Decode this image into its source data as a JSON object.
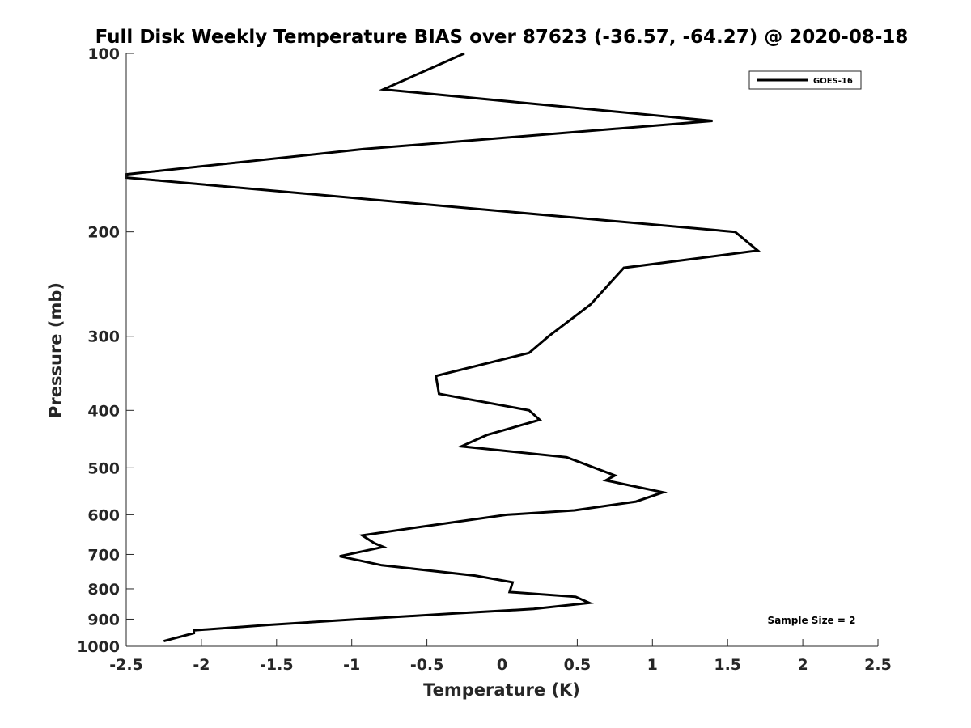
{
  "chart_data": {
    "type": "line",
    "title": "Full Disk Weekly Temperature BIAS over 87623 (-36.57, -64.27) @ 2020-08-18",
    "xlabel": "Temperature (K)",
    "ylabel": "Pressure (mb)",
    "xlim": [
      -2.5,
      2.5
    ],
    "ylim": [
      1000,
      100
    ],
    "yscale": "log",
    "x_ticks": [
      -2.5,
      -2,
      -1.5,
      -1,
      -0.5,
      0,
      0.5,
      1,
      1.5,
      2,
      2.5
    ],
    "x_tick_labels": [
      "-2.5",
      "-2",
      "-1.5",
      "-1",
      "-0.5",
      "0",
      "0.5",
      "1",
      "1.5",
      "2",
      "2.5"
    ],
    "y_ticks": [
      100,
      200,
      300,
      400,
      500,
      600,
      700,
      800,
      900,
      1000
    ],
    "y_tick_labels": [
      "100",
      "200",
      "300",
      "400",
      "500",
      "600",
      "700",
      "800",
      "900",
      "1000"
    ],
    "grid": false,
    "legend": {
      "position": "top-right",
      "entries": [
        "GOES-16"
      ]
    },
    "annotation": "Sample Size = 2",
    "series": [
      {
        "name": "GOES-16",
        "color": "#000000",
        "points": [
          [
            -0.25,
            100
          ],
          [
            -0.79,
            115
          ],
          [
            1.4,
            130
          ],
          [
            -0.92,
            145
          ],
          [
            -2.5,
            160
          ],
          [
            -2.5,
            162
          ],
          [
            1.55,
            200
          ],
          [
            1.7,
            215
          ],
          [
            0.81,
            230
          ],
          [
            0.68,
            250
          ],
          [
            0.59,
            265
          ],
          [
            0.31,
            300
          ],
          [
            0.18,
            320
          ],
          [
            -0.44,
            350
          ],
          [
            -0.42,
            375
          ],
          [
            0.18,
            400
          ],
          [
            0.25,
            415
          ],
          [
            -0.1,
            440
          ],
          [
            -0.27,
            460
          ],
          [
            0.43,
            480
          ],
          [
            0.75,
            515
          ],
          [
            0.69,
            525
          ],
          [
            1.07,
            550
          ],
          [
            0.89,
            570
          ],
          [
            0.48,
            590
          ],
          [
            0.03,
            600
          ],
          [
            -0.56,
            630
          ],
          [
            -0.93,
            650
          ],
          [
            -0.85,
            670
          ],
          [
            -0.79,
            680
          ],
          [
            -1.08,
            705
          ],
          [
            -0.8,
            730
          ],
          [
            -0.18,
            760
          ],
          [
            0.07,
            780
          ],
          [
            0.05,
            810
          ],
          [
            0.49,
            825
          ],
          [
            0.58,
            845
          ],
          [
            0.21,
            865
          ],
          [
            -0.31,
            880
          ],
          [
            -0.96,
            900
          ],
          [
            -1.55,
            920
          ],
          [
            -2.05,
            940
          ],
          [
            -2.05,
            950
          ],
          [
            -2.25,
            980
          ]
        ]
      }
    ]
  }
}
